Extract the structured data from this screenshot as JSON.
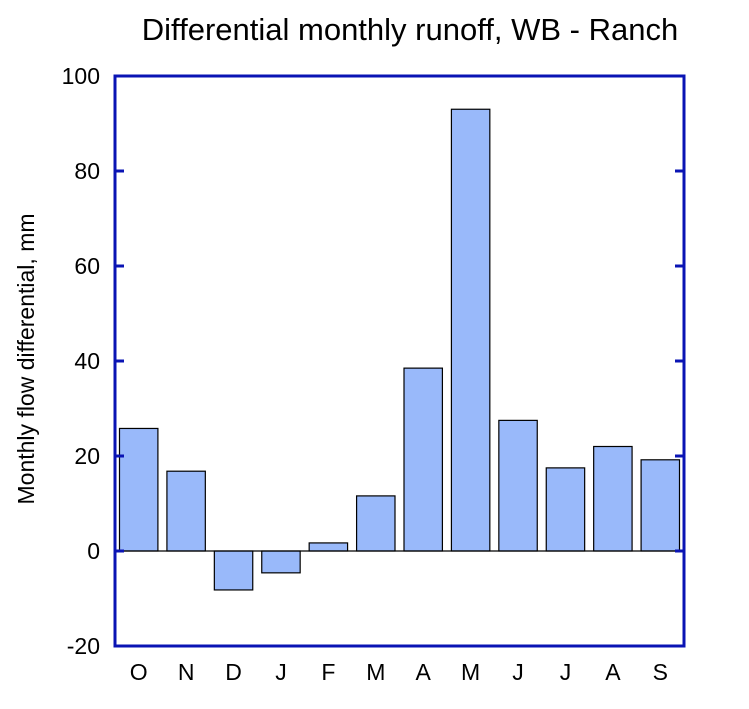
{
  "chart_data": {
    "type": "bar",
    "title": "Differential monthly runoff, WB - Ranch",
    "xlabel": "",
    "ylabel": "Monthly flow differential, mm",
    "categories": [
      "O",
      "N",
      "D",
      "J",
      "F",
      "M",
      "A",
      "M",
      "J",
      "J",
      "A",
      "S"
    ],
    "values": [
      25.8,
      16.8,
      -8.2,
      -4.6,
      1.7,
      11.6,
      38.5,
      93.0,
      27.5,
      17.5,
      22.0,
      19.2
    ],
    "ylim": [
      -20,
      100
    ],
    "yticks": [
      "-20",
      "0",
      "20",
      "40",
      "60",
      "80",
      "100"
    ],
    "grid": false,
    "legend": "none",
    "colors": {
      "bar_fill": "#99b9fa",
      "bar_stroke": "#000000",
      "frame": "#0a14b4",
      "zero_line": "#000000"
    }
  }
}
